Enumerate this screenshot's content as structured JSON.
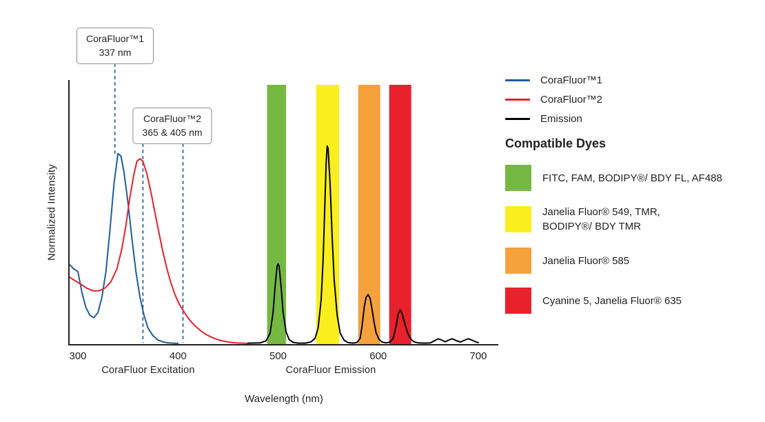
{
  "chart_data": {
    "type": "line",
    "title": "",
    "xlabel": "Wavelength (nm)",
    "ylabel": "Normalized Intensity",
    "xlim": [
      300,
      700
    ],
    "ylim": [
      0,
      1
    ],
    "grid": false,
    "x_ticks": [
      300,
      400,
      500,
      600,
      700
    ],
    "x_section_labels": [
      {
        "label": "CoraFluor Excitation"
      },
      {
        "label": "CoraFluor Emission"
      }
    ],
    "annotations": [
      {
        "title": "CoraFluor™1",
        "subtitle": "337 nm",
        "lines_nm": [
          337
        ]
      },
      {
        "title": "CoraFluor™2",
        "subtitle": "365 & 405 nm",
        "lines_nm": [
          365,
          405
        ]
      }
    ],
    "annotation_line_color": "#1c5d99",
    "bands": [
      {
        "name": "green",
        "color": "#76b844",
        "from_nm": 489,
        "to_nm": 508
      },
      {
        "name": "yellow",
        "color": "#fbee1e",
        "from_nm": 538,
        "to_nm": 561
      },
      {
        "name": "orange",
        "color": "#f5a23c",
        "from_nm": 580,
        "to_nm": 602
      },
      {
        "name": "red",
        "color": "#e8212d",
        "from_nm": 611,
        "to_nm": 633
      }
    ],
    "series": [
      {
        "name": "CoraFluor™1",
        "color": "#1c5d99",
        "points": [
          [
            291,
            0.31
          ],
          [
            296,
            0.29
          ],
          [
            300,
            0.28
          ],
          [
            304,
            0.2
          ],
          [
            308,
            0.14
          ],
          [
            312,
            0.11
          ],
          [
            316,
            0.1
          ],
          [
            320,
            0.12
          ],
          [
            324,
            0.18
          ],
          [
            328,
            0.28
          ],
          [
            332,
            0.44
          ],
          [
            336,
            0.62
          ],
          [
            340,
            0.74
          ],
          [
            343,
            0.73
          ],
          [
            346,
            0.67
          ],
          [
            350,
            0.55
          ],
          [
            354,
            0.41
          ],
          [
            358,
            0.28
          ],
          [
            362,
            0.18
          ],
          [
            366,
            0.11
          ],
          [
            370,
            0.06
          ],
          [
            375,
            0.03
          ],
          [
            380,
            0.013
          ],
          [
            385,
            0.006
          ],
          [
            390,
            0.002
          ],
          [
            395,
            0.001
          ],
          [
            400,
            0
          ]
        ]
      },
      {
        "name": "CoraFluor™2",
        "color": "#e8212d",
        "points": [
          [
            291,
            0.26
          ],
          [
            297,
            0.245
          ],
          [
            303,
            0.23
          ],
          [
            309,
            0.215
          ],
          [
            315,
            0.205
          ],
          [
            321,
            0.205
          ],
          [
            327,
            0.215
          ],
          [
            333,
            0.24
          ],
          [
            339,
            0.29
          ],
          [
            344,
            0.37
          ],
          [
            348,
            0.46
          ],
          [
            352,
            0.57
          ],
          [
            356,
            0.66
          ],
          [
            359,
            0.71
          ],
          [
            362,
            0.72
          ],
          [
            365,
            0.71
          ],
          [
            369,
            0.66
          ],
          [
            373,
            0.59
          ],
          [
            377,
            0.51
          ],
          [
            381,
            0.43
          ],
          [
            385,
            0.355
          ],
          [
            389,
            0.29
          ],
          [
            393,
            0.235
          ],
          [
            397,
            0.19
          ],
          [
            401,
            0.155
          ],
          [
            405,
            0.13
          ],
          [
            409,
            0.105
          ],
          [
            413,
            0.085
          ],
          [
            418,
            0.065
          ],
          [
            423,
            0.048
          ],
          [
            428,
            0.035
          ],
          [
            433,
            0.025
          ],
          [
            438,
            0.017
          ],
          [
            443,
            0.011
          ],
          [
            448,
            0.007
          ],
          [
            453,
            0.004
          ],
          [
            458,
            0.002
          ],
          [
            464,
            0.001
          ],
          [
            470,
            0
          ]
        ]
      },
      {
        "name": "Emission",
        "color": "#000000",
        "points": [
          [
            470,
            0.001
          ],
          [
            482,
            0.002
          ],
          [
            488,
            0.01
          ],
          [
            492,
            0.04
          ],
          [
            495,
            0.12
          ],
          [
            497,
            0.22
          ],
          [
            499,
            0.3
          ],
          [
            500,
            0.31
          ],
          [
            501,
            0.3
          ],
          [
            503,
            0.22
          ],
          [
            505,
            0.12
          ],
          [
            508,
            0.045
          ],
          [
            511,
            0.015
          ],
          [
            515,
            0.004
          ],
          [
            520,
            0.001
          ],
          [
            527,
            0.001
          ],
          [
            533,
            0.006
          ],
          [
            537,
            0.02
          ],
          [
            540,
            0.06
          ],
          [
            543,
            0.17
          ],
          [
            545,
            0.33
          ],
          [
            547,
            0.58
          ],
          [
            548,
            0.7
          ],
          [
            549,
            0.77
          ],
          [
            550,
            0.76
          ],
          [
            552,
            0.62
          ],
          [
            554,
            0.42
          ],
          [
            556,
            0.25
          ],
          [
            559,
            0.11
          ],
          [
            562,
            0.04
          ],
          [
            566,
            0.012
          ],
          [
            570,
            0.003
          ],
          [
            575,
            0.001
          ],
          [
            579,
            0.004
          ],
          [
            582,
            0.02
          ],
          [
            584,
            0.07
          ],
          [
            586,
            0.14
          ],
          [
            588,
            0.18
          ],
          [
            590,
            0.19
          ],
          [
            592,
            0.175
          ],
          [
            594,
            0.13
          ],
          [
            596,
            0.08
          ],
          [
            598,
            0.04
          ],
          [
            601,
            0.015
          ],
          [
            604,
            0.005
          ],
          [
            608,
            0.002
          ],
          [
            612,
            0.006
          ],
          [
            615,
            0.02
          ],
          [
            618,
            0.07
          ],
          [
            620,
            0.115
          ],
          [
            622,
            0.13
          ],
          [
            624,
            0.115
          ],
          [
            627,
            0.07
          ],
          [
            630,
            0.035
          ],
          [
            633,
            0.015
          ],
          [
            636,
            0.006
          ],
          [
            640,
            0.002
          ],
          [
            646,
            0.001
          ],
          [
            652,
            0.002
          ],
          [
            656,
            0.01
          ],
          [
            660,
            0.018
          ],
          [
            664,
            0.012
          ],
          [
            667,
            0.006
          ],
          [
            670,
            0.012
          ],
          [
            674,
            0.018
          ],
          [
            678,
            0.011
          ],
          [
            682,
            0.005
          ],
          [
            686,
            0.012
          ],
          [
            690,
            0.018
          ],
          [
            694,
            0.012
          ],
          [
            698,
            0.005
          ],
          [
            700,
            0.003
          ]
        ]
      }
    ]
  },
  "legend": {
    "entries": [
      {
        "label": "CoraFluor™1",
        "color": "#1c5d99"
      },
      {
        "label": "CoraFluor™2",
        "color": "#e8212d"
      },
      {
        "label": "Emission",
        "color": "#000000"
      }
    ],
    "dyes_title": "Compatible Dyes",
    "dyes": [
      {
        "name": "green-band-dyes",
        "color": "#76b844",
        "label": "FITC, FAM, BODIPY®/ BDY FL, AF488"
      },
      {
        "name": "yellow-band-dyes",
        "color": "#fbee1e",
        "label": "Janelia Fluor® 549, TMR,\nBODIPY®/ BDY TMR"
      },
      {
        "name": "orange-band-dyes",
        "color": "#f5a23c",
        "label": "Janelia Fluor® 585"
      },
      {
        "name": "red-band-dyes",
        "color": "#e8212d",
        "label": "Cyanine 5, Janelia Fluor® 635"
      }
    ]
  }
}
